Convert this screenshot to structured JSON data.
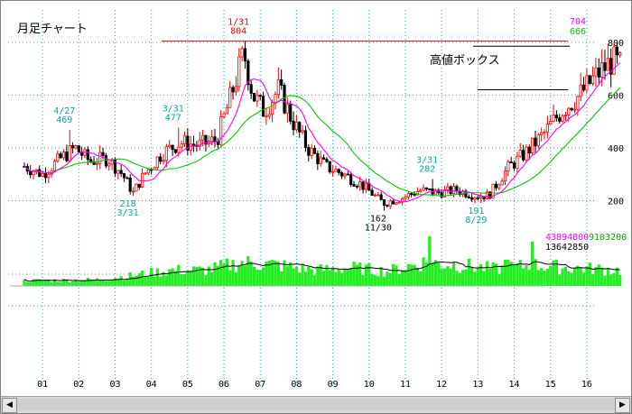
{
  "title": "月足チャート",
  "box_label": "高値ボックス",
  "volume_labels": {
    "v1": "43894800",
    "v2": "9103200",
    "v3": "13642850"
  },
  "ma_labels": {
    "m1": "704",
    "m2": "666"
  },
  "scroll": {
    "left": "◀",
    "right": "▶"
  },
  "colors": {
    "up": "#ff0000",
    "down": "#000000",
    "ma_short": "#ff00ff",
    "ma_long": "#00cc00",
    "volume": "#22ee22",
    "hline": "#ff0000",
    "annot": "#00aaaa"
  },
  "chart_data": {
    "type": "candlestick",
    "x_ticks": [
      "01",
      "02",
      "03",
      "04",
      "05",
      "06",
      "07",
      "08",
      "09",
      "10",
      "11",
      "12",
      "13",
      "14",
      "15",
      "16"
    ],
    "y_ticks": [
      200,
      400,
      600,
      800
    ],
    "ylim": [
      130,
      820
    ],
    "reference_line": 804,
    "box_high": 785,
    "box_low": 620,
    "annotations": [
      {
        "label_top": "4/27",
        "label_bottom": "469",
        "x": 1.25,
        "value": 469,
        "color": "#00aaaa",
        "pos": "above"
      },
      {
        "label_top": "218",
        "label_bottom": "3/31",
        "x": 3.0,
        "value": 218,
        "color": "#00aaaa",
        "pos": "below"
      },
      {
        "label_top": "3/31",
        "label_bottom": "477",
        "x": 4.25,
        "value": 477,
        "color": "#00aaaa",
        "pos": "above"
      },
      {
        "label_top": "1/31",
        "label_bottom": "804",
        "x": 6.05,
        "value": 804,
        "color": "#ff0000",
        "pos": "above"
      },
      {
        "label_top": "162",
        "label_bottom": "11/30",
        "x": 9.9,
        "value": 162,
        "color": "#000000",
        "pos": "below"
      },
      {
        "label_top": "3/31",
        "label_bottom": "282",
        "x": 11.25,
        "value": 282,
        "color": "#00aaaa",
        "pos": "above"
      },
      {
        "label_top": "191",
        "label_bottom": "8/29",
        "x": 12.6,
        "value": 191,
        "color": "#00aaaa",
        "pos": "below"
      }
    ],
    "monthly_close_keypoints": [
      [
        0.0,
        330
      ],
      [
        0.5,
        300
      ],
      [
        1.0,
        360
      ],
      [
        1.4,
        400
      ],
      [
        1.8,
        350
      ],
      [
        2.3,
        360
      ],
      [
        2.7,
        300
      ],
      [
        3.0,
        230
      ],
      [
        3.3,
        300
      ],
      [
        3.8,
        380
      ],
      [
        4.3,
        420
      ],
      [
        4.8,
        410
      ],
      [
        5.3,
        430
      ],
      [
        5.7,
        600
      ],
      [
        6.05,
        760
      ],
      [
        6.3,
        600
      ],
      [
        6.6,
        540
      ],
      [
        7.0,
        620
      ],
      [
        7.4,
        500
      ],
      [
        7.8,
        400
      ],
      [
        8.3,
        330
      ],
      [
        8.8,
        300
      ],
      [
        9.3,
        260
      ],
      [
        9.9,
        190
      ],
      [
        10.4,
        210
      ],
      [
        10.9,
        240
      ],
      [
        11.4,
        230
      ],
      [
        11.9,
        240
      ],
      [
        12.4,
        220
      ],
      [
        12.8,
        220
      ],
      [
        13.3,
        320
      ],
      [
        13.8,
        380
      ],
      [
        14.3,
        450
      ],
      [
        14.8,
        540
      ],
      [
        15.3,
        600
      ],
      [
        15.8,
        680
      ],
      [
        16.2,
        730
      ],
      [
        16.45,
        710
      ]
    ],
    "volume_keypoints": [
      [
        0.0,
        0.1
      ],
      [
        2.0,
        0.12
      ],
      [
        3.0,
        0.2
      ],
      [
        4.0,
        0.3
      ],
      [
        5.0,
        0.3
      ],
      [
        6.0,
        0.45
      ],
      [
        7.0,
        0.4
      ],
      [
        8.0,
        0.3
      ],
      [
        9.0,
        0.35
      ],
      [
        10.0,
        0.28
      ],
      [
        11.0,
        0.45
      ],
      [
        12.0,
        0.4
      ],
      [
        13.0,
        0.32
      ],
      [
        14.0,
        0.4
      ],
      [
        15.0,
        0.35
      ],
      [
        16.45,
        0.3
      ]
    ],
    "volume_spikes": [
      [
        11.2,
        0.95
      ],
      [
        14.0,
        0.85
      ],
      [
        13.3,
        0.5
      ]
    ]
  }
}
